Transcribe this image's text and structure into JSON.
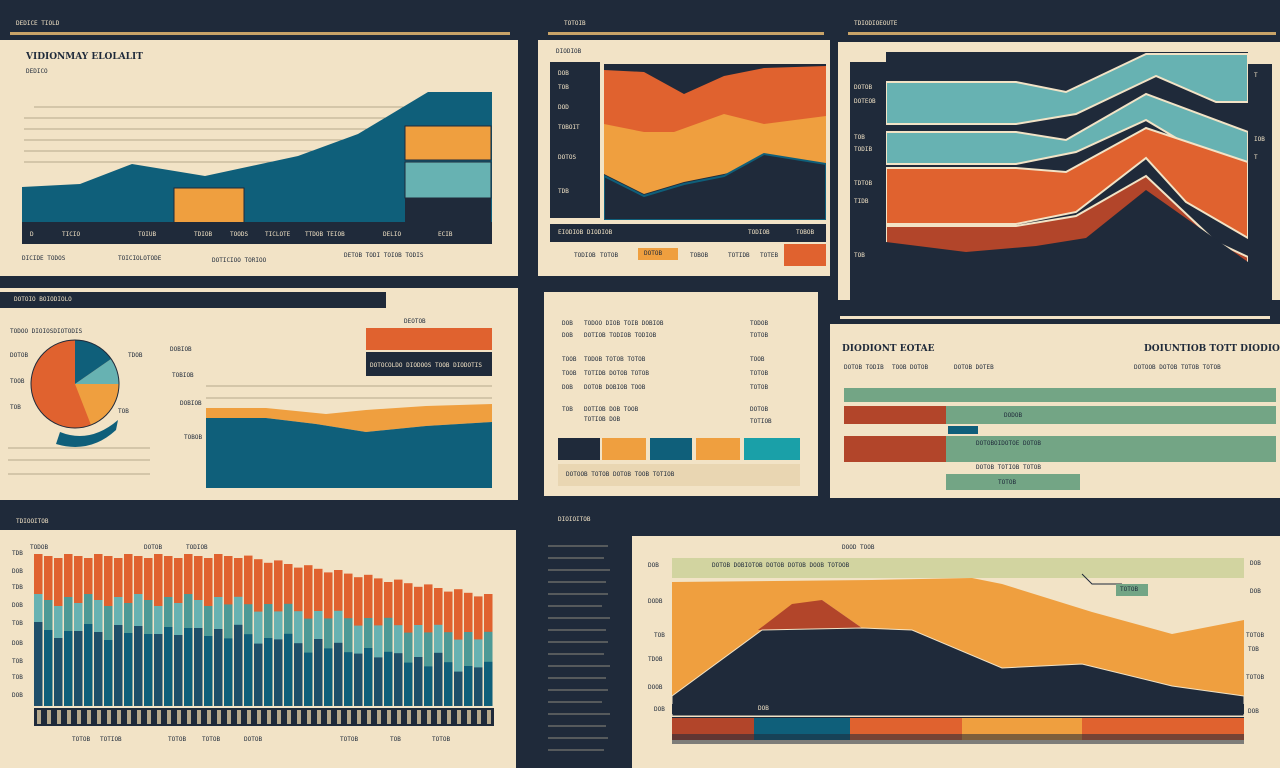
{
  "colors": {
    "navy": "#1f2a3a",
    "teal": "#0f5f7a",
    "teal_light": "#67b2b2",
    "orange": "#e0622f",
    "amber": "#ef9f3f",
    "cream": "#f2e3c6",
    "rust": "#b2452a",
    "sage": "#73a585",
    "gold": "#c8a368"
  },
  "panels": {
    "p1": {
      "header": "DEDICE TIOLD",
      "title": "VIDIONMAY ELOLALIT",
      "subtitle": "DEDICO",
      "ticks": [
        "D",
        "TICIO",
        "TOIUB",
        "TDIOB",
        "TOODS",
        "TICLOTE",
        "TTDOB TEIOB",
        "DELIO",
        "ECIB"
      ],
      "footer": [
        "DICIDE TODOS",
        "TOICIOLOTODE",
        "DOTICIOO TORIOO",
        "DETOB TODI TOIOB TODIS"
      ]
    },
    "p2": {
      "header": "TOTOIB",
      "sub": "DIODIOB",
      "labels": [
        "DOB",
        "TOB",
        "DOD",
        "TOBOIT",
        "DOTOS",
        "TDB"
      ],
      "ticks": [
        "EIODIOB DIODIOB",
        "TODIOB",
        "TOBOB"
      ],
      "footer": [
        "TODIOB",
        "TOTOB",
        "TOBOB",
        "TOTIDB",
        "TOTEB"
      ],
      "tag": "DOTOB"
    },
    "p3": {
      "header": "TDIODIOEOUTE",
      "left_labels": [
        "DOTOB",
        "DOTEOB",
        "TOB",
        "TODIB",
        "TDTOB",
        "TIDB",
        "TOB"
      ],
      "right_labels": [
        "T",
        "IOB",
        "T"
      ]
    },
    "p4": {
      "header": "DOTOIO BOIODIOLO",
      "subtitle": "TODOO DIOIOSDIOTODIS",
      "legend": [
        "DOTOB",
        "TOOB",
        "TOB",
        "TDOB",
        "TOB"
      ],
      "ticks": [
        "DOBIOB",
        "TOBIOB",
        "DOBIOB",
        "TOBOB"
      ],
      "footer": [
        "TODOB DOTOO",
        "DODOB"
      ],
      "tag": "DEOTOB",
      "box_label": "DOTOCOLDO DIODOOS TOOB DIODOTIS"
    },
    "p5": {
      "rows": [
        {
          "a": "DOB",
          "b": "TODOO DIOB TOIB DOBIOB",
          "c": "TODOB"
        },
        {
          "a": "DOB",
          "b": "DOTIOB TODIOB TODIOB",
          "c": "TOTOB"
        },
        {
          "a": "TOOB",
          "b": "TODOB TOTOB TOTOB",
          "c": "TOOB"
        },
        {
          "a": "TOOB",
          "b": "TOTIDB DOTOB TOTOB",
          "c": "TOTOB"
        },
        {
          "a": "DOB",
          "b": "DOTOB DOBIOB TOOB",
          "c": "TOTOB"
        },
        {
          "a": "TOB",
          "b": "DOTIOB DOB TOOB",
          "c": "DOTOB"
        },
        {
          "a": "DOB",
          "b": "TOTIOB DOB",
          "c": "TOTIOB"
        }
      ],
      "footer": "DOTOOB TOTOB DOTOB TOOB TOTIOB"
    },
    "p6": {
      "title_left": "DIODIONT EOTAE",
      "title_right": "DOIUNTIOB TOTT DIODIO",
      "sub_left": [
        "DOTOB TODIB",
        "TOOB DOTOB",
        "DOTOB DOTEB"
      ],
      "sub_right": [
        "DOTOOB DOTOB TOTOB TOTOB"
      ],
      "tags": [
        "DODOB",
        "DOTOBOIDOTOE DOTOB",
        "DOTOB TOTIOB TOTOB",
        "TOTOB"
      ]
    },
    "p7": {
      "header": "TDIOOITOB",
      "ticks_top": [
        "TODOB",
        "DOTOB",
        "TODIOB"
      ],
      "left_labels": [
        "TDB",
        "DOB",
        "TDB",
        "DOB",
        "TOB",
        "DOB",
        "TOB",
        "TOB",
        "DOB"
      ],
      "footer": [
        "TOTOB",
        "TOTIOB",
        "TOTOB",
        "TOTOB",
        "DOTOB",
        "TOTOB",
        "TOB",
        "TOTOB"
      ]
    },
    "p8": {
      "header": "DIOIOITOB",
      "top_label": "DOOD TOOB",
      "left_labels": [
        "DOB",
        "DODB",
        "TOB",
        "TDOB",
        "DOOB",
        "DOB"
      ],
      "right_labels": [
        "DOB",
        "DOB",
        "TOTOB",
        "TOB",
        "TOTOB",
        "DOB"
      ],
      "banner": "DOTOB DOBIOTOB DOTOB DOTOB DOOB TOTOOB",
      "tag": "TOTOB",
      "bottom_tag": "DOB"
    }
  }
}
